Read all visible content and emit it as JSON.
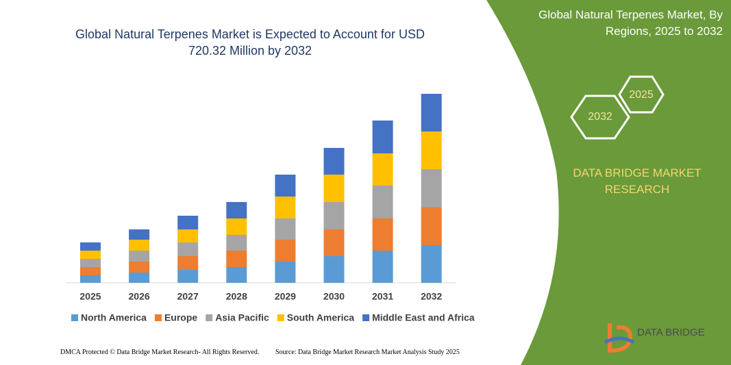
{
  "chart_data": {
    "type": "stacked_bar",
    "title": "Global Natural Terpenes Market is Expected to Account for USD 720.32 Million by 2032",
    "categories": [
      "2025",
      "2026",
      "2027",
      "2028",
      "2029",
      "2030",
      "2031",
      "2032"
    ],
    "series": [
      {
        "name": "North America",
        "color": "#5b9bd5",
        "values": [
          11,
          15,
          19,
          23,
          31,
          39,
          47,
          55
        ]
      },
      {
        "name": "Europe",
        "color": "#ed7d31",
        "values": [
          12,
          16,
          20,
          24,
          32,
          39,
          47,
          55
        ]
      },
      {
        "name": "Asia Pacific",
        "color": "#a5a5a5",
        "values": [
          12,
          16,
          20,
          23,
          31,
          40,
          48,
          56
        ]
      },
      {
        "name": "South America",
        "color": "#ffc000",
        "values": [
          12,
          16,
          19,
          24,
          32,
          40,
          47,
          55
        ]
      },
      {
        "name": "Middle East and Africa",
        "color": "#4472c4",
        "values": [
          12,
          15,
          20,
          24,
          32,
          39,
          48,
          55
        ]
      }
    ]
  },
  "side_panel": {
    "title": "Global Natural Terpenes Market, By Regions, 2025 to 2032",
    "hex_start": "2025",
    "hex_end": "2032",
    "brand": "DATA BRIDGE MARKET RESEARCH"
  },
  "footer": {
    "left": "DMCA Protected © Data Bridge Market Research- All Rights Reserved.",
    "right": "Source: Data Bridge Market Research Market Analysis Study 2025"
  },
  "logo": {
    "text": "DATA BRIDGE"
  }
}
